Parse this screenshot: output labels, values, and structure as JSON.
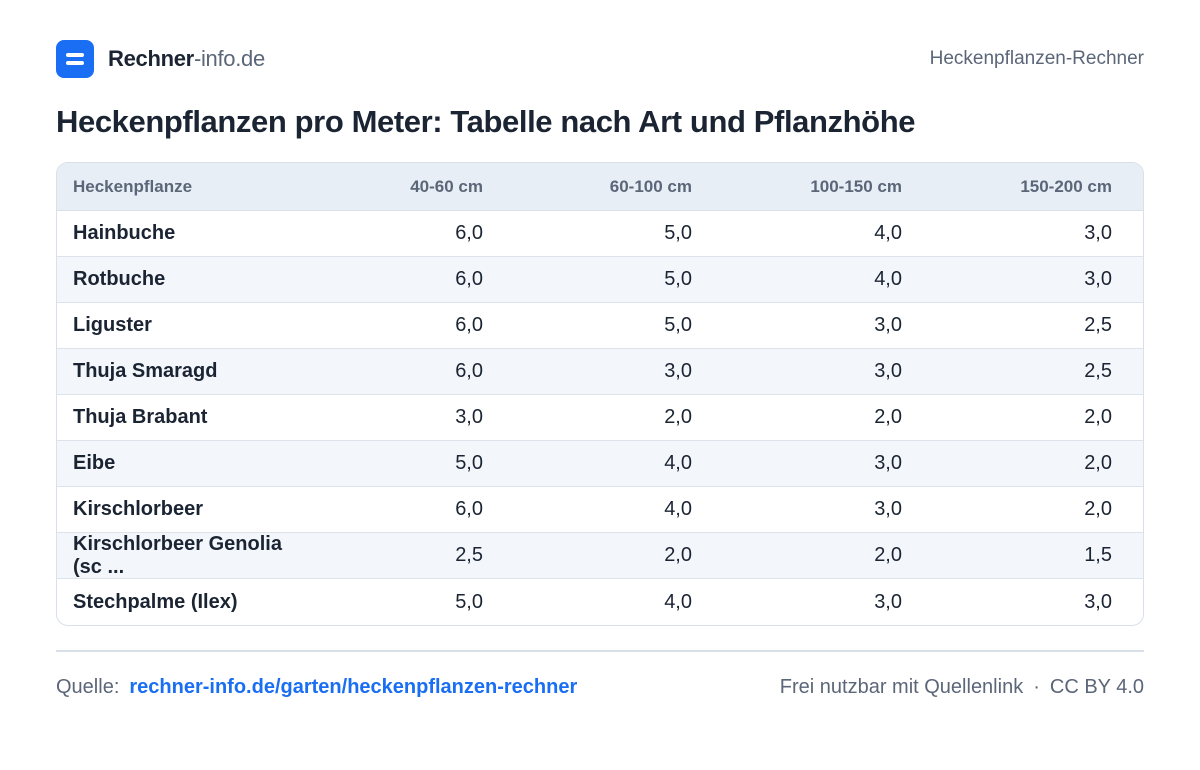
{
  "header": {
    "brand_strong": "Rechner",
    "brand_light": "-info.de",
    "page_label": "Heckenpflanzen-Rechner"
  },
  "title": "Heckenpflanzen pro Meter: Tabelle nach Art und Pflanzhöhe",
  "table": {
    "columns": [
      "Heckenpflanze",
      "40-60 cm",
      "60-100 cm",
      "100-150 cm",
      "150-200 cm"
    ],
    "rows": [
      {
        "name": "Hainbuche",
        "values": [
          "6,0",
          "5,0",
          "4,0",
          "3,0"
        ]
      },
      {
        "name": "Rotbuche",
        "values": [
          "6,0",
          "5,0",
          "4,0",
          "3,0"
        ]
      },
      {
        "name": "Liguster",
        "values": [
          "6,0",
          "5,0",
          "3,0",
          "2,5"
        ]
      },
      {
        "name": "Thuja Smaragd",
        "values": [
          "6,0",
          "3,0",
          "3,0",
          "2,5"
        ]
      },
      {
        "name": "Thuja Brabant",
        "values": [
          "3,0",
          "2,0",
          "2,0",
          "2,0"
        ]
      },
      {
        "name": "Eibe",
        "values": [
          "5,0",
          "4,0",
          "3,0",
          "2,0"
        ]
      },
      {
        "name": "Kirschlorbeer",
        "values": [
          "6,0",
          "4,0",
          "3,0",
          "2,0"
        ]
      },
      {
        "name": "Kirschlorbeer Genolia (sc ...",
        "values": [
          "2,5",
          "2,0",
          "2,0",
          "1,5"
        ]
      },
      {
        "name": "Stechpalme (Ilex)",
        "values": [
          "5,0",
          "4,0",
          "3,0",
          "3,0"
        ]
      }
    ]
  },
  "footer": {
    "source_label": "Quelle:",
    "source_link": "rechner-info.de/garten/heckenpflanzen-rechner",
    "usage": "Frei nutzbar mit Quellenlink",
    "separator": "·",
    "license": "CC BY 4.0"
  },
  "colors": {
    "accent": "#1a6ef3",
    "text": "#1b2433",
    "muted": "#5b6678",
    "header_bg": "#e8eef6",
    "alt_row_bg": "#f3f6fa"
  }
}
